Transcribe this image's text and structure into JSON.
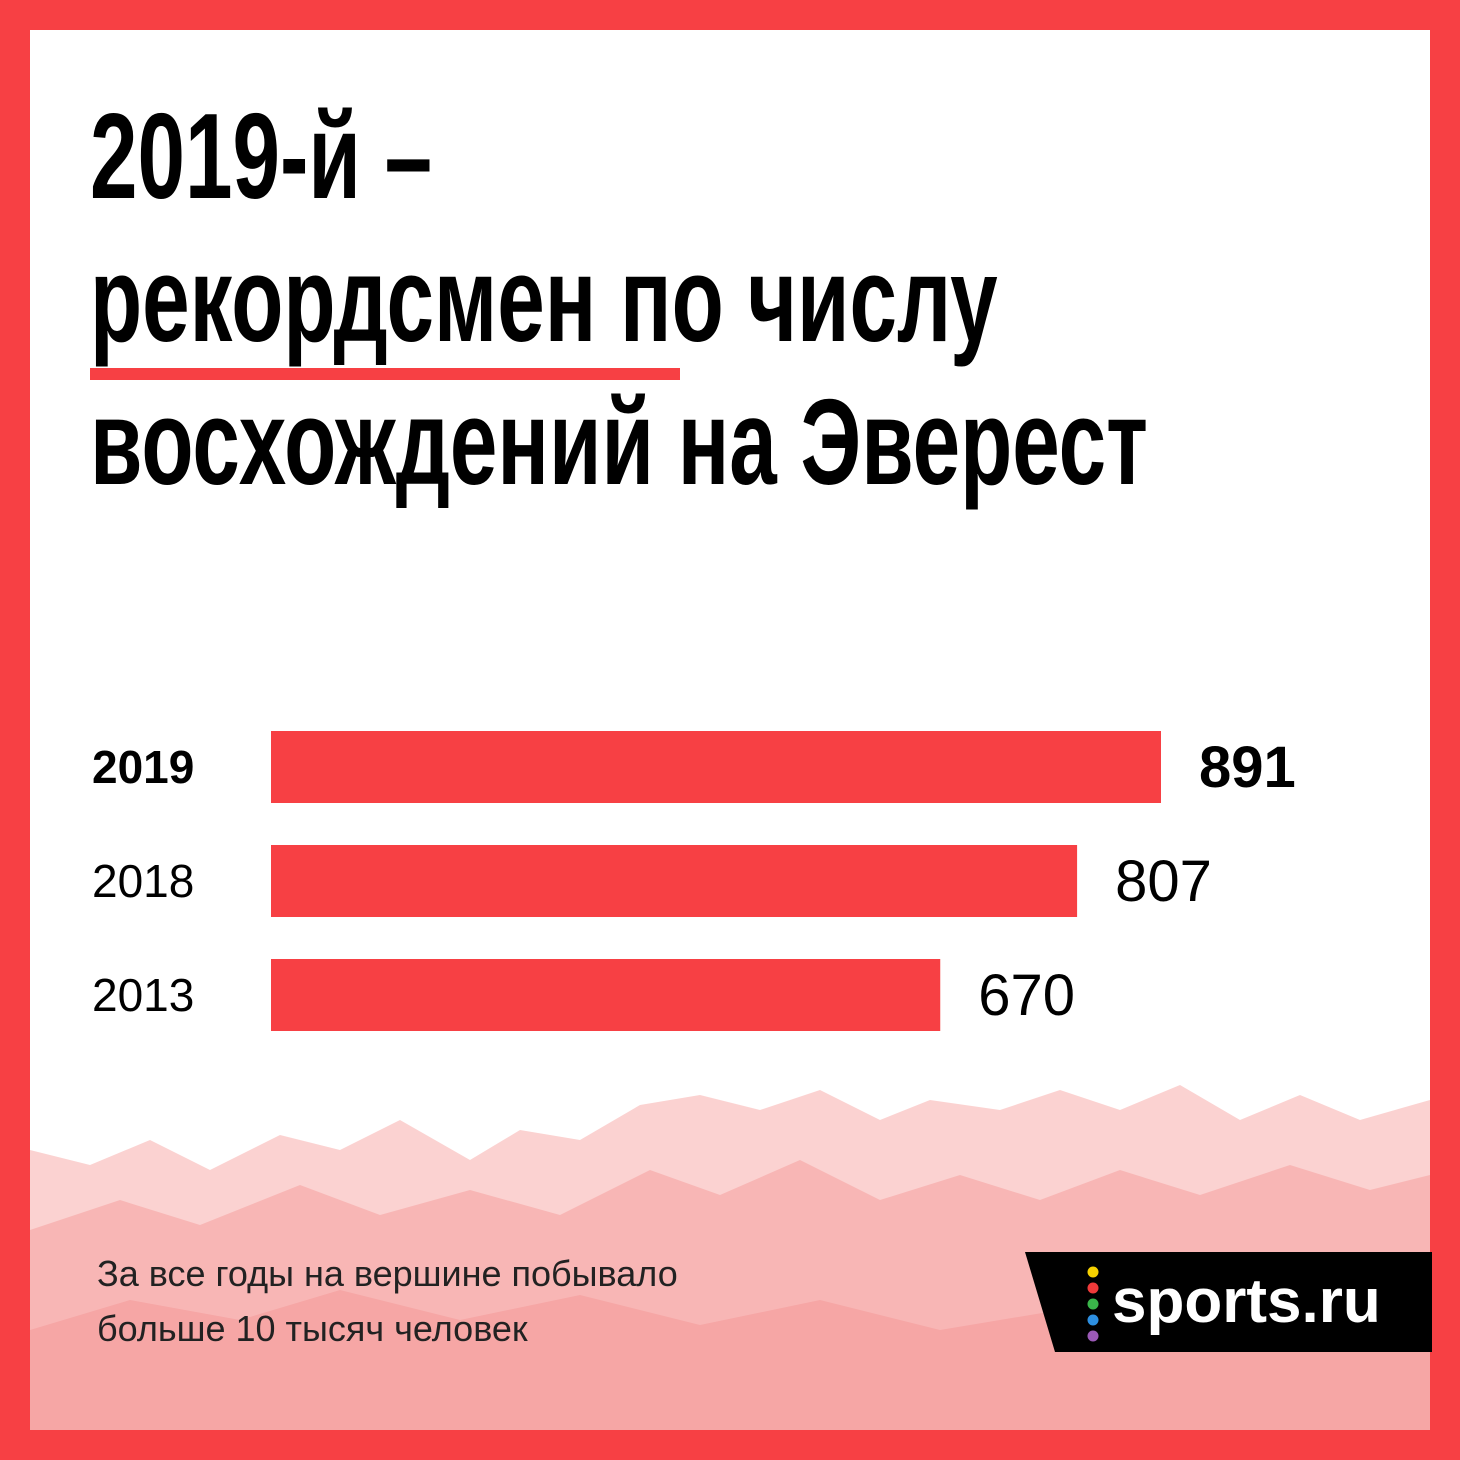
{
  "chart_data": {
    "type": "bar",
    "title": [
      "2019-й –",
      "рекордсмен по числу",
      "восхождений на Эверест"
    ],
    "categories": [
      "2019",
      "2018",
      "2013"
    ],
    "values": [
      891,
      807,
      670
    ],
    "color": "#f74044",
    "highlight_index": 0,
    "footnote": [
      "За все годы на вершине побывало",
      "больше 10 тысяч человек"
    ],
    "logo": "sports.ru"
  }
}
